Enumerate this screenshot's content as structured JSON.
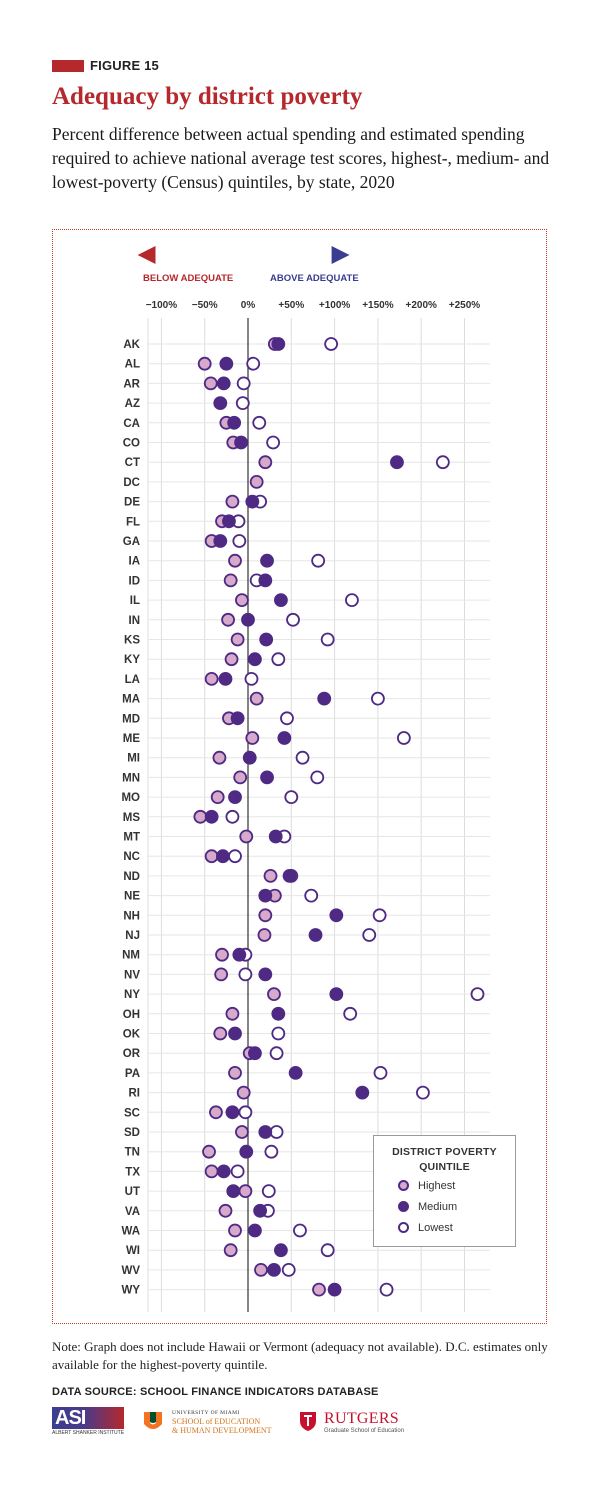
{
  "figure_label": "FIGURE 15",
  "title": "Adequacy by district poverty",
  "subtitle": "Percent difference between actual spending and estimated spending required to achieve national average test scores, highest-, medium- and lowest-poverty (Census) quintiles, by state, 2020",
  "direction": {
    "below": "BELOW ADEQUATE",
    "above": "ABOVE ADEQUATE"
  },
  "colors": {
    "brand_red": "#b5282c",
    "below_red": "#b5282c",
    "above_blue": "#3a3d8f",
    "highest": "#d7aacb",
    "medium": "#4e2a84",
    "lowest": "#ffffff",
    "outline": "#4e2a84"
  },
  "legend": {
    "title": "DISTRICT POVERTY QUINTILE",
    "items": [
      "Highest",
      "Medium",
      "Lowest"
    ]
  },
  "chart_data": {
    "type": "scatter",
    "title": "Adequacy by district poverty",
    "xlabel": "",
    "ylabel": "",
    "xlim": [
      -115,
      270
    ],
    "x_ticks": [
      -100,
      -50,
      0,
      50,
      100,
      150,
      200,
      250
    ],
    "x_tick_labels": [
      "−100%",
      "−50%",
      "0%",
      "+50%",
      "+100%",
      "+150%",
      "+200%",
      "+250%"
    ],
    "grid": true,
    "legend_position": "bottom-right",
    "categories": [
      "AK",
      "AL",
      "AR",
      "AZ",
      "CA",
      "CO",
      "CT",
      "DC",
      "DE",
      "FL",
      "GA",
      "IA",
      "ID",
      "IL",
      "IN",
      "KS",
      "KY",
      "LA",
      "MA",
      "MD",
      "ME",
      "MI",
      "MN",
      "MO",
      "MS",
      "MT",
      "NC",
      "ND",
      "NE",
      "NH",
      "NJ",
      "NM",
      "NV",
      "NY",
      "OH",
      "OK",
      "OR",
      "PA",
      "RI",
      "SC",
      "SD",
      "TN",
      "TX",
      "UT",
      "VA",
      "WA",
      "WI",
      "WV",
      "WY"
    ],
    "series": [
      {
        "name": "Highest",
        "values": [
          31,
          -50,
          -43,
          null,
          -25,
          -17,
          20,
          10,
          -18,
          -30,
          -42,
          -15,
          -20,
          -7,
          -23,
          -12,
          -19,
          -42,
          10,
          -22,
          5,
          -33,
          -9,
          -35,
          -55,
          -2,
          -42,
          26,
          31,
          20,
          19,
          -30,
          -31,
          30,
          -18,
          -32,
          2,
          -15,
          -5,
          -37,
          -7,
          -45,
          -42,
          -3,
          -26,
          -15,
          -20,
          15,
          82
        ]
      },
      {
        "name": "Medium",
        "values": [
          35,
          -25,
          -28,
          -32,
          -16,
          -8,
          172,
          null,
          5,
          -22,
          -32,
          22,
          20,
          38,
          0,
          21,
          8,
          -26,
          88,
          -12,
          42,
          2,
          22,
          -15,
          -42,
          32,
          -29,
          48,
          20,
          102,
          78,
          -10,
          20,
          102,
          35,
          -15,
          8,
          55,
          132,
          -18,
          20,
          -2,
          -28,
          -17,
          14,
          8,
          38,
          30,
          100
        ]
      },
      {
        "name": "Lowest",
        "values": [
          96,
          6,
          -5,
          -6,
          13,
          29,
          225,
          null,
          14,
          -11,
          -10,
          81,
          10,
          120,
          52,
          92,
          35,
          4,
          150,
          45,
          180,
          63,
          80,
          50,
          -18,
          42,
          -15,
          50,
          73,
          152,
          140,
          -3,
          -3,
          265,
          118,
          35,
          33,
          153,
          202,
          -3,
          33,
          27,
          -12,
          24,
          23,
          60,
          92,
          47,
          160
        ]
      }
    ]
  },
  "note": "Note: Graph does not include Hawaii or Vermont (adequacy not available). D.C. estimates only available for the highest-poverty quintile.",
  "source": "DATA SOURCE: SCHOOL FINANCE INDICATORS DATABASE",
  "logos": {
    "asi": {
      "mark": "ASI",
      "name": "ALBERT SHANKER INSTITUTE"
    },
    "um": {
      "line1": "UNIVERSITY OF MIAMI",
      "line2": "SCHOOL of EDUCATION",
      "line3": "& HUMAN DEVELOPMENT"
    },
    "rutgers": {
      "name": "RUTGERS",
      "sub": "Graduate School of Education"
    }
  }
}
